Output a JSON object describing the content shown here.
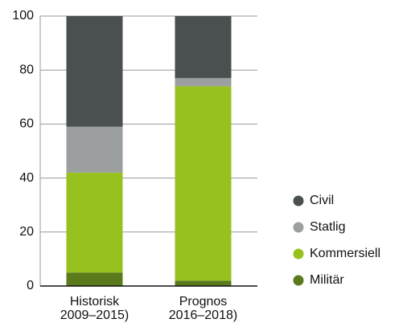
{
  "chart_data": {
    "type": "stacked_bar",
    "categories": [
      [
        "Historisk",
        "2009–2015)"
      ],
      [
        "Prognos",
        "2016–2018)"
      ]
    ],
    "series": [
      {
        "name": "Militär",
        "color": "#5b7a1c",
        "values": [
          5,
          2
        ]
      },
      {
        "name": "Kommersiell",
        "color": "#97c11f",
        "values": [
          37,
          72
        ]
      },
      {
        "name": "Statlig",
        "color": "#9b9fa0",
        "values": [
          17,
          3
        ]
      },
      {
        "name": "Civil",
        "color": "#4a4f4f",
        "values": [
          41,
          23
        ]
      }
    ],
    "ylim": [
      0,
      100
    ],
    "yticks": [
      0,
      20,
      40,
      60,
      80,
      100
    ],
    "grid": true
  }
}
